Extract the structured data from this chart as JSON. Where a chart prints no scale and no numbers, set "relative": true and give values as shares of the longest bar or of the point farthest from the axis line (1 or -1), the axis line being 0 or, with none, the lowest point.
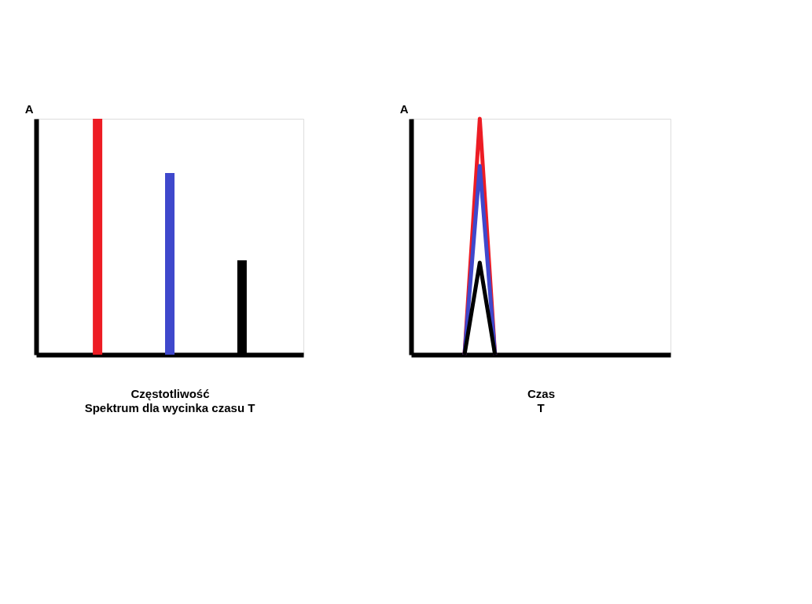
{
  "chart_data": [
    {
      "type": "bar",
      "relative": true,
      "xlabel": "Częstotliwość",
      "ylabel": "A",
      "categories": [
        null,
        null,
        null
      ],
      "values": [
        1,
        0.77,
        0.4
      ],
      "colors": [
        "#ed1c24",
        "#3f48cc",
        "#000000"
      ],
      "annotations": [
        "Spektrum dla wycinka czasu T"
      ]
    },
    {
      "type": "line",
      "relative": true,
      "xlabel": "Czas",
      "ylabel": "A",
      "categories": [
        null,
        null,
        null,
        null,
        null,
        null,
        null,
        null,
        null,
        null,
        null,
        null,
        null,
        null,
        null,
        null,
        null
      ],
      "series": [
        {
          "color": "#ed1c24",
          "values": [
            null,
            null,
            null,
            0,
            1,
            0,
            null,
            null,
            null,
            null,
            null,
            null,
            null,
            null,
            null,
            null,
            null
          ]
        },
        {
          "color": "#3f48cc",
          "values": [
            null,
            null,
            null,
            0,
            0.8,
            0,
            null,
            null,
            null,
            null,
            null,
            null,
            null,
            null,
            null,
            null,
            null
          ]
        },
        {
          "color": "#000000",
          "values": [
            null,
            null,
            null,
            0,
            0.39,
            0,
            null,
            null,
            null,
            null,
            null,
            null,
            null,
            null,
            null,
            null,
            null
          ]
        }
      ],
      "annotations": [
        "T"
      ]
    }
  ]
}
